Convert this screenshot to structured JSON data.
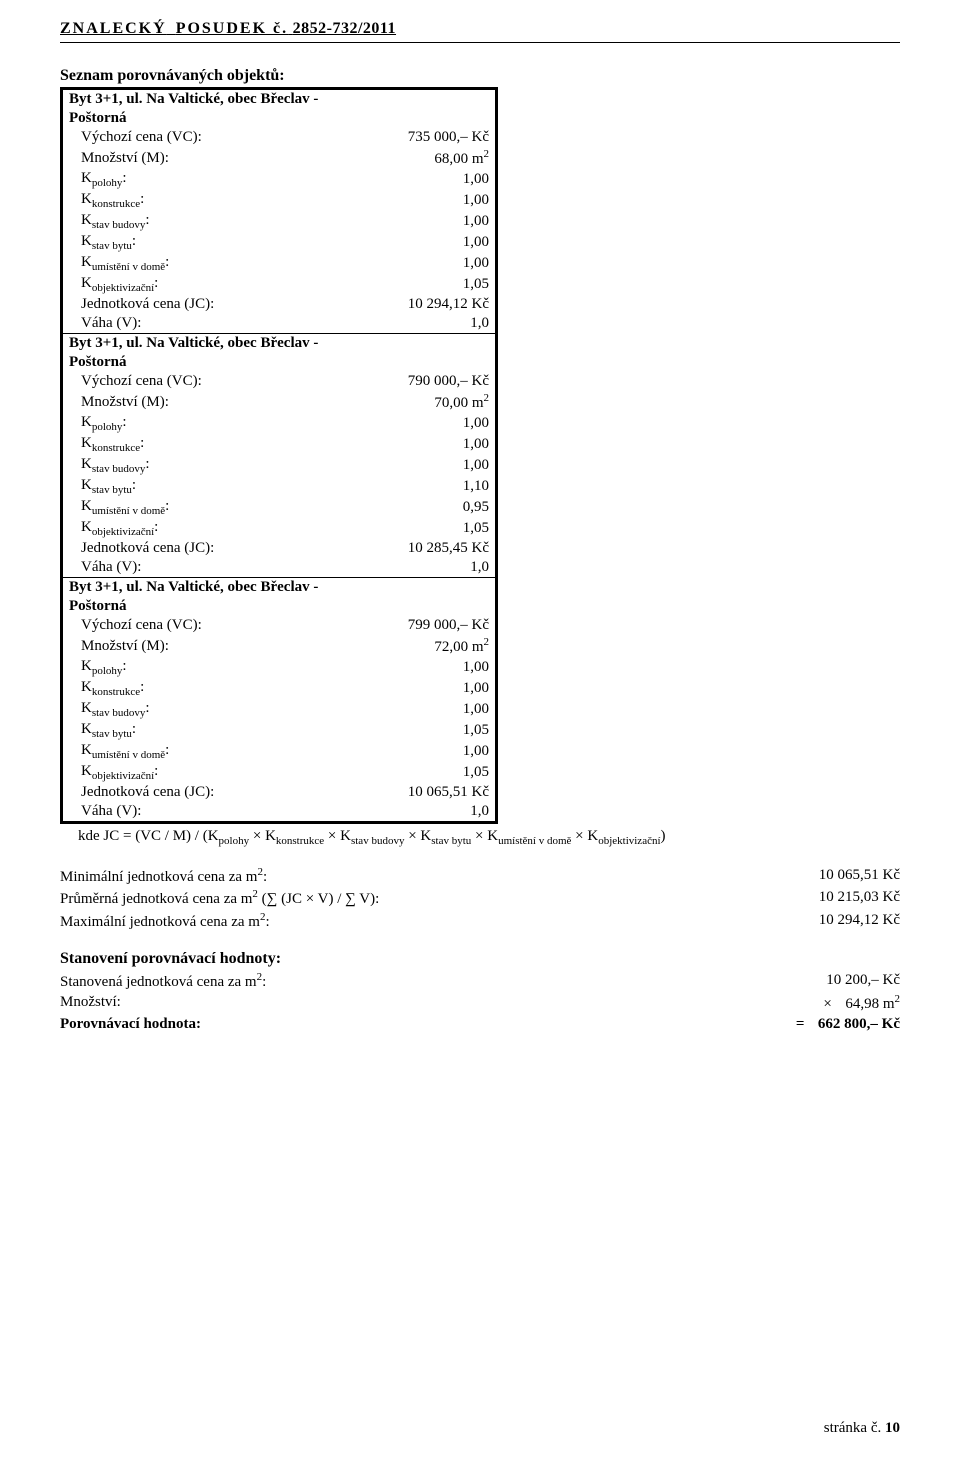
{
  "header": {
    "doc_title_prefix": "ZNALECKÝ",
    "doc_title_middle": "POSUDEK č.",
    "doc_title_number": "2852-732/2011"
  },
  "main": {
    "section_title": "Seznam porovnávaných objektů:",
    "groups": [
      {
        "title_line1": "Byt 3+1, ul. Na Valtické, obec Břeclav -",
        "title_line2": "Poštorná",
        "rows": [
          {
            "label": "Výchozí cena (VC):",
            "value": "735 000,– Kč"
          },
          {
            "label": "Množství (M):",
            "value": "68,00 m",
            "sup": "2"
          },
          {
            "label": "K",
            "sub": "polohy",
            "suffix": ":",
            "value": "1,00"
          },
          {
            "label": "K",
            "sub": "konstrukce",
            "suffix": ":",
            "value": "1,00"
          },
          {
            "label": "K",
            "sub": "stav budovy",
            "suffix": ":",
            "value": "1,00"
          },
          {
            "label": "K",
            "sub": "stav bytu",
            "suffix": ":",
            "value": "1,00"
          },
          {
            "label": "K",
            "sub": "umístění v domě",
            "suffix": ":",
            "value": "1,00"
          },
          {
            "label": "K",
            "sub": "objektivizační",
            "suffix": ":",
            "value": "1,05"
          },
          {
            "label": "Jednotková cena (JC):",
            "value": "10 294,12 Kč"
          },
          {
            "label": "Váha (V):",
            "value": "1,0"
          }
        ]
      },
      {
        "title_line1": "Byt 3+1, ul. Na Valtické, obec Břeclav -",
        "title_line2": "Poštorná",
        "rows": [
          {
            "label": "Výchozí cena (VC):",
            "value": "790 000,– Kč"
          },
          {
            "label": "Množství (M):",
            "value": "70,00 m",
            "sup": "2"
          },
          {
            "label": "K",
            "sub": "polohy",
            "suffix": ":",
            "value": "1,00"
          },
          {
            "label": "K",
            "sub": "konstrukce",
            "suffix": ":",
            "value": "1,00"
          },
          {
            "label": "K",
            "sub": "stav budovy",
            "suffix": ":",
            "value": "1,00"
          },
          {
            "label": "K",
            "sub": "stav bytu",
            "suffix": ":",
            "value": "1,10"
          },
          {
            "label": "K",
            "sub": "umístění v domě",
            "suffix": ":",
            "value": "0,95"
          },
          {
            "label": "K",
            "sub": "objektivizační",
            "suffix": ":",
            "value": "1,05"
          },
          {
            "label": "Jednotková cena (JC):",
            "value": "10 285,45 Kč"
          },
          {
            "label": "Váha (V):",
            "value": "1,0"
          }
        ]
      },
      {
        "title_line1": "Byt 3+1, ul. Na Valtické, obec Břeclav -",
        "title_line2": "Poštorná",
        "rows": [
          {
            "label": "Výchozí cena (VC):",
            "value": "799 000,– Kč"
          },
          {
            "label": "Množství (M):",
            "value": "72,00 m",
            "sup": "2"
          },
          {
            "label": "K",
            "sub": "polohy",
            "suffix": ":",
            "value": "1,00"
          },
          {
            "label": "K",
            "sub": "konstrukce",
            "suffix": ":",
            "value": "1,00"
          },
          {
            "label": "K",
            "sub": "stav budovy",
            "suffix": ":",
            "value": "1,00"
          },
          {
            "label": "K",
            "sub": "stav bytu",
            "suffix": ":",
            "value": "1,05"
          },
          {
            "label": "K",
            "sub": "umístění v domě",
            "suffix": ":",
            "value": "1,00"
          },
          {
            "label": "K",
            "sub": "objektivizační",
            "suffix": ":",
            "value": "1,05"
          },
          {
            "label": "Jednotková cena (JC):",
            "value": "10 065,51 Kč"
          },
          {
            "label": "Váha (V):",
            "value": "1,0"
          }
        ]
      }
    ],
    "formula": {
      "text_prefix": "kde JC = (VC / M) / (K",
      "k_terms": [
        "polohy",
        "konstrukce",
        "stav budovy",
        "stav bytu",
        "umístění v domě",
        "objektivizační"
      ],
      "text_suffix": ")"
    },
    "summary_cena": [
      {
        "left_prefix": "Minimální jednotková cena za m",
        "sup": "2",
        "left_suffix": ":",
        "right": "10 065,51 Kč"
      },
      {
        "left_prefix": "Průměrná jednotková cena za m",
        "sup": "2",
        "left_suffix": " (∑ (JC × V)   /   ∑ V):",
        "right": "10 215,03 Kč"
      },
      {
        "left_prefix": "Maximální jednotková cena za m",
        "sup": "2",
        "left_suffix": ":",
        "right": "10 294,12 Kč"
      }
    ],
    "stanoveni_title": "Stanovení porovnávací hodnoty:",
    "stanoveni_rows": [
      {
        "left_prefix": "Stanovená jednotková cena za m",
        "sup": "2",
        "left_suffix": ":",
        "right": "10 200,– Kč",
        "prefix_sym": ""
      },
      {
        "left_prefix": "Množství:",
        "sup": "",
        "left_suffix": "",
        "right": "64,98 m",
        "right_sup": "2",
        "prefix_sym": "×"
      },
      {
        "left_prefix": "Porovnávací hodnota:",
        "sup": "",
        "left_suffix": "",
        "right": "662 800,– Kč",
        "prefix_sym": "=",
        "bold": true
      }
    ]
  },
  "footer": {
    "page_label": "stránka č.",
    "page_number": "10"
  }
}
